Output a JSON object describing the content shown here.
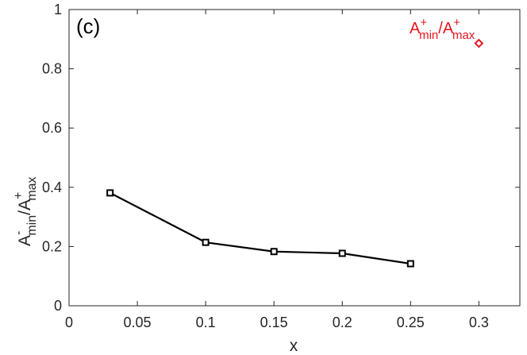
{
  "chart_data": {
    "type": "scatter",
    "panel_label": "(c)",
    "xlabel": "x",
    "ylabel": {
      "base1": "A",
      "sup1": "-",
      "sub1": "min",
      "sep": "/",
      "base2": "A",
      "sup2": "+",
      "sub2": "max"
    },
    "xlim": [
      0,
      0.33
    ],
    "ylim": [
      0,
      1
    ],
    "x_ticks": [
      0,
      0.05,
      0.1,
      0.15,
      0.2,
      0.25,
      0.3
    ],
    "x_tick_labels": [
      "0",
      "0.05",
      "0.1",
      "0.15",
      "0.2",
      "0.25",
      "0.3"
    ],
    "y_ticks": [
      0,
      0.2,
      0.4,
      0.6,
      0.8,
      1
    ],
    "y_tick_labels": [
      "0",
      "0.2",
      "0.4",
      "0.6",
      "0.8",
      "1"
    ],
    "grid": false,
    "series": [
      {
        "marker": "square",
        "line": true,
        "color": "#000000",
        "x": [
          0.03,
          0.1,
          0.15,
          0.2,
          0.25
        ],
        "y": [
          0.381,
          0.214,
          0.183,
          0.177,
          0.142
        ]
      },
      {
        "marker": "diamond",
        "line": false,
        "color": "#e8141e",
        "x": [
          0.3
        ],
        "y": [
          0.886
        ]
      }
    ],
    "annotation": {
      "base1": "A",
      "sup1": "+",
      "sub1": "min",
      "sep": "/",
      "base2": "A",
      "sup2": "+",
      "sub2": "max",
      "color": "#e8141e"
    }
  }
}
